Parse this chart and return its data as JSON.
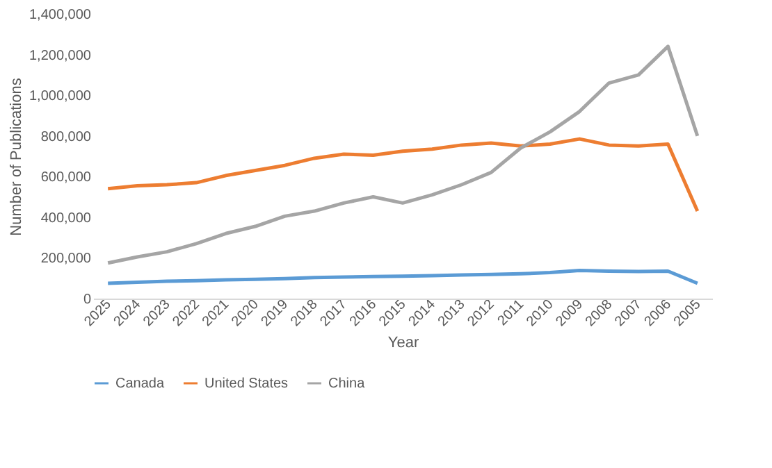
{
  "chart_data": {
    "type": "line",
    "xlabel": "Year",
    "ylabel": "Number of Publications",
    "categories": [
      "2025",
      "2024",
      "2023",
      "2022",
      "2021",
      "2020",
      "2019",
      "2018",
      "2017",
      "2016",
      "2015",
      "2014",
      "2013",
      "2012",
      "2011",
      "2010",
      "2009",
      "2008",
      "2007",
      "2006",
      "2005"
    ],
    "series": [
      {
        "name": "Canada",
        "color": "#5b9bd5",
        "values": [
          75000,
          80000,
          85000,
          88000,
          92000,
          95000,
          98000,
          103000,
          106000,
          108000,
          110000,
          113000,
          116000,
          119000,
          122000,
          128000,
          138000,
          135000,
          133000,
          135000,
          75000
        ]
      },
      {
        "name": "United States",
        "color": "#ed7d31",
        "values": [
          540000,
          555000,
          560000,
          570000,
          605000,
          630000,
          655000,
          690000,
          710000,
          705000,
          725000,
          735000,
          755000,
          765000,
          750000,
          760000,
          785000,
          755000,
          750000,
          760000,
          430000
        ]
      },
      {
        "name": "China",
        "color": "#a5a5a5",
        "values": [
          175000,
          205000,
          230000,
          270000,
          320000,
          355000,
          405000,
          430000,
          470000,
          500000,
          470000,
          510000,
          560000,
          620000,
          740000,
          820000,
          920000,
          1060000,
          1100000,
          1240000,
          800000
        ]
      }
    ],
    "ylim": [
      0,
      1400000
    ],
    "yticks": [
      0,
      {
        "value": 200000,
        "label": "200,000"
      },
      {
        "value": 400000,
        "label": "400,000"
      },
      {
        "value": 600000,
        "label": "600,000"
      },
      {
        "value": 800000,
        "label": "800,000"
      },
      {
        "value": 1000000,
        "label": "1,000,000"
      },
      {
        "value": 1200000,
        "label": "1,200,000"
      },
      {
        "value": 1400000,
        "label": "1,400,000"
      }
    ],
    "grid": false,
    "legend": "bottom",
    "marker": "none",
    "line_style": "solid"
  }
}
